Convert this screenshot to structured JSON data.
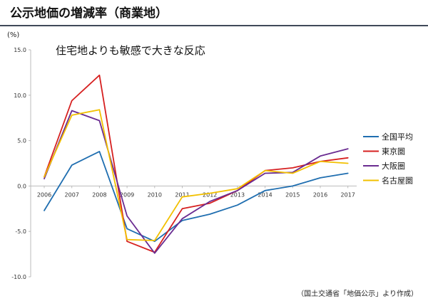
{
  "header": {
    "title": "公示地価の増減率（商業地）"
  },
  "unit_label": "(%)",
  "subtitle": "住宅地よりも敏感で大きな反応",
  "source_note": "（国土交通省「地価公示」より作成）",
  "colors": {
    "title_rule": "#3f4a59",
    "series": [
      "#1f6eb0",
      "#d62020",
      "#6a2c91",
      "#f2c000"
    ]
  },
  "chart_data": {
    "type": "line",
    "categories": [
      "2006",
      "2007",
      "2008",
      "2009",
      "2010",
      "2011",
      "2012",
      "2013",
      "2014",
      "2015",
      "2016",
      "2017"
    ],
    "ylim": [
      -10,
      15
    ],
    "yticks": [
      "15.0",
      "10.0",
      "5.0",
      "0.0",
      "-5.0",
      "-10.0"
    ],
    "ytick_values": [
      15,
      10,
      5,
      0,
      -5,
      -10
    ],
    "legend_position": "right",
    "grid": false,
    "series": [
      {
        "name": "全国平均",
        "values": [
          -2.7,
          2.3,
          3.8,
          -4.7,
          -6.1,
          -3.8,
          -3.1,
          -2.1,
          -0.5,
          0.0,
          0.9,
          1.4
        ]
      },
      {
        "name": "東京圏",
        "values": [
          1.0,
          9.4,
          12.2,
          -6.1,
          -7.3,
          -2.5,
          -1.9,
          -0.5,
          1.7,
          2.0,
          2.7,
          3.1
        ]
      },
      {
        "name": "大阪圏",
        "values": [
          0.8,
          8.3,
          7.2,
          -3.3,
          -7.4,
          -3.6,
          -1.7,
          -0.5,
          1.4,
          1.5,
          3.3,
          4.1
        ]
      },
      {
        "name": "名古屋圏",
        "values": [
          1.0,
          7.8,
          8.4,
          -5.9,
          -6.0,
          -1.2,
          -0.8,
          -0.3,
          1.7,
          1.4,
          2.7,
          2.5
        ]
      }
    ]
  }
}
